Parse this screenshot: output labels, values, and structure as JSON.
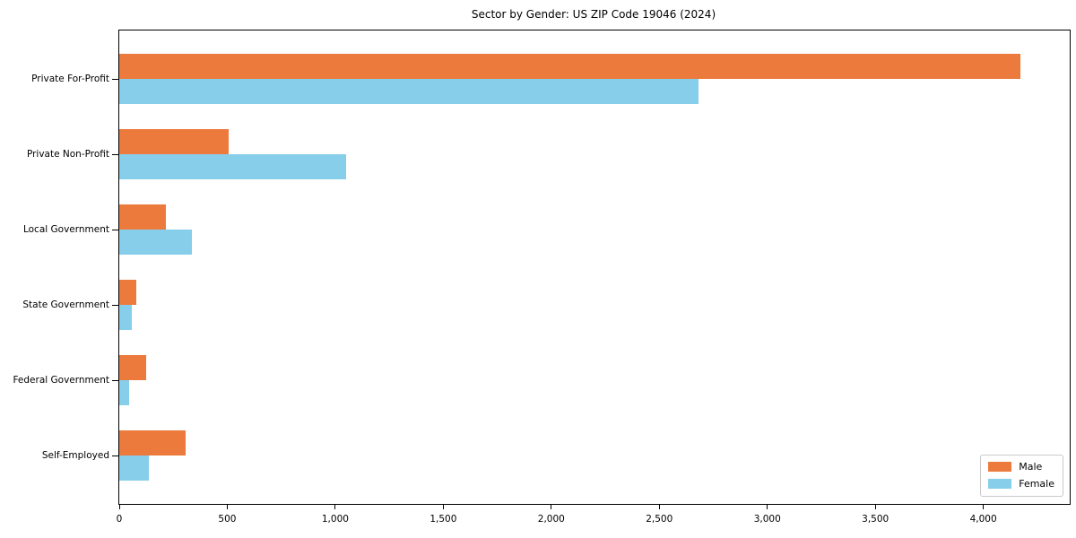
{
  "chart_data": {
    "type": "bar",
    "orientation": "horizontal",
    "title": "Sector by Gender: US ZIP Code 19046 (2024)",
    "categories": [
      "Private For-Profit",
      "Private Non-Profit",
      "Local Government",
      "State Government",
      "Federal Government",
      "Self-Employed"
    ],
    "series": [
      {
        "name": "Male",
        "color": "#EC7A3C",
        "values": [
          4170,
          505,
          215,
          80,
          125,
          305
        ]
      },
      {
        "name": "Female",
        "color": "#87CEEB",
        "values": [
          2680,
          1050,
          335,
          58,
          45,
          135
        ]
      }
    ],
    "xlim": [
      0,
      4400
    ],
    "x_ticks": [
      0,
      500,
      1000,
      1500,
      2000,
      2500,
      3000,
      3500,
      4000
    ],
    "x_tick_labels": [
      "0",
      "500",
      "1,000",
      "1,500",
      "2,000",
      "2,500",
      "3,000",
      "3,500",
      "4,000"
    ],
    "grid": false,
    "legend_position": "lower-right",
    "axis_color": "#000000",
    "background_color": "#ffffff"
  }
}
